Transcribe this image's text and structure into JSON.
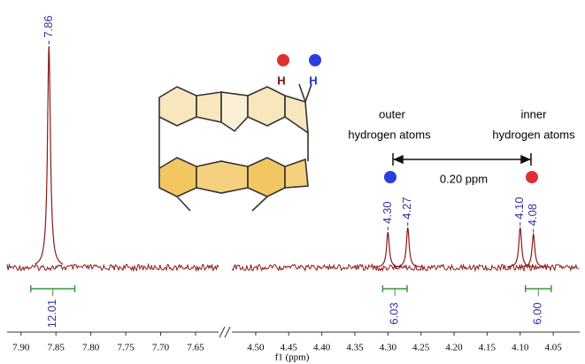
{
  "chart_data": {
    "type": "nmr",
    "x_label": "f1 (ppm)",
    "color": "#8b1a1a",
    "label_color": "#34349c",
    "integral_color": "#3a9a3a",
    "segments": [
      {
        "xlim": [
          7.92,
          7.617
        ],
        "xticks": [
          {
            "value": 7.9,
            "label": "7.90"
          },
          7.85,
          {
            "value": 7.8,
            "label": "7.80"
          },
          7.75,
          {
            "value": 7.7,
            "label": "7.70"
          },
          7.65
        ]
      },
      {
        "xlim": [
          4.536,
          4.01
        ],
        "xticks": [
          {
            "value": 4.5,
            "label": "4.50"
          },
          4.45,
          {
            "value": 4.4,
            "label": "4.40"
          },
          4.35,
          {
            "value": 4.3,
            "label": "4.30"
          },
          4.25,
          {
            "value": 4.2,
            "label": "4.20"
          },
          4.15,
          {
            "value": 4.1,
            "label": "4.10"
          },
          4.05
        ]
      }
    ],
    "peaks": {
      "x": [
        7.86,
        4.3,
        4.27,
        4.1,
        4.08
      ],
      "x_labels": [
        "7.86",
        "4.30",
        "4.27",
        "4.10",
        "4.08"
      ],
      "values": [
        100,
        16,
        18,
        18,
        15
      ]
    },
    "integrals": [
      {
        "from": 7.886,
        "to": 7.823,
        "value": 12.01,
        "value_label": "12.01"
      },
      {
        "from": 4.308,
        "to": 4.271,
        "value": 6.03,
        "value_label": "6.03"
      },
      {
        "from": 4.092,
        "to": 4.053,
        "value": 6,
        "value_label": "6.00"
      }
    ],
    "annotations": [
      "outer",
      "hydrogen atoms",
      "inner",
      "hydrogen atoms",
      "0.20 ppm",
      "H",
      "H"
    ]
  }
}
